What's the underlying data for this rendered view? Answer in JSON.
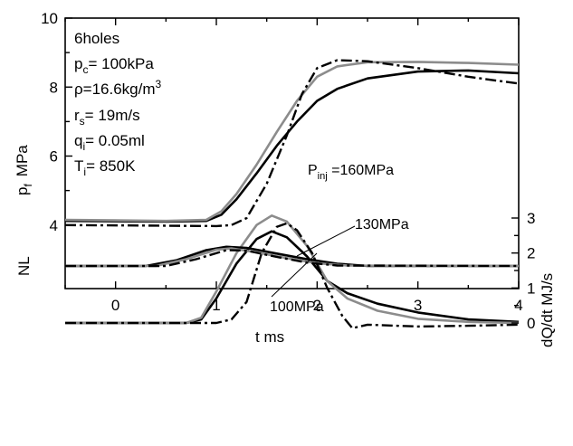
{
  "chart_data": {
    "type": "line",
    "xlabel": "t   ms",
    "xlim": [
      -0.5,
      4
    ],
    "x_ticks": [
      "0",
      "1",
      "2",
      "3",
      "4"
    ],
    "panels": {
      "pressure": {
        "ylabel": "p",
        "ylabel_sub": "f",
        "ylabel_unit": "MPa",
        "ylim": [
          3.6,
          10
        ],
        "y_ticks": [
          "4",
          "6",
          "8",
          "10"
        ],
        "series": [
          {
            "style": "black-solid",
            "points": [
              [
                -0.5,
                4.12
              ],
              [
                0.5,
                4.1
              ],
              [
                0.9,
                4.12
              ],
              [
                1.05,
                4.3
              ],
              [
                1.2,
                4.75
              ],
              [
                1.4,
                5.5
              ],
              [
                1.6,
                6.3
              ],
              [
                1.8,
                7.0
              ],
              [
                2.0,
                7.6
              ],
              [
                2.2,
                7.95
              ],
              [
                2.5,
                8.25
              ],
              [
                3.0,
                8.45
              ],
              [
                3.5,
                8.48
              ],
              [
                4.0,
                8.4
              ]
            ]
          },
          {
            "style": "gray-solid",
            "points": [
              [
                -0.5,
                4.15
              ],
              [
                0.5,
                4.12
              ],
              [
                0.9,
                4.15
              ],
              [
                1.05,
                4.4
              ],
              [
                1.2,
                4.9
              ],
              [
                1.4,
                5.75
              ],
              [
                1.6,
                6.7
              ],
              [
                1.8,
                7.6
              ],
              [
                2.0,
                8.3
              ],
              [
                2.2,
                8.6
              ],
              [
                2.5,
                8.72
              ],
              [
                3.0,
                8.73
              ],
              [
                3.5,
                8.7
              ],
              [
                4.0,
                8.65
              ]
            ]
          },
          {
            "style": "black-dashdot",
            "points": [
              [
                -0.5,
                4.0
              ],
              [
                0.5,
                3.98
              ],
              [
                1.0,
                3.97
              ],
              [
                1.15,
                4.0
              ],
              [
                1.3,
                4.2
              ],
              [
                1.5,
                5.2
              ],
              [
                1.7,
                6.6
              ],
              [
                1.85,
                7.8
              ],
              [
                2.0,
                8.55
              ],
              [
                2.2,
                8.78
              ],
              [
                2.5,
                8.75
              ],
              [
                3.0,
                8.55
              ],
              [
                3.5,
                8.3
              ],
              [
                4.0,
                8.1
              ]
            ]
          }
        ]
      },
      "heat_release": {
        "ylabel": "dQ/dt   MJ/s",
        "ylim": [
          -0.5,
          3.3
        ],
        "y_ticks": [
          "0",
          "1",
          "2",
          "3"
        ],
        "series": [
          {
            "name": "100MPa",
            "style": "black-solid",
            "points": [
              [
                -0.5,
                0
              ],
              [
                0.7,
                0
              ],
              [
                0.85,
                0.1
              ],
              [
                1.0,
                0.7
              ],
              [
                1.2,
                1.7
              ],
              [
                1.4,
                2.4
              ],
              [
                1.55,
                2.62
              ],
              [
                1.7,
                2.45
              ],
              [
                1.9,
                1.9
              ],
              [
                2.1,
                1.2
              ],
              [
                2.3,
                0.85
              ],
              [
                2.6,
                0.55
              ],
              [
                3.0,
                0.3
              ],
              [
                3.5,
                0.1
              ],
              [
                4.0,
                0.03
              ]
            ]
          },
          {
            "name": "130MPa",
            "style": "gray-solid",
            "points": [
              [
                -0.5,
                0
              ],
              [
                0.7,
                0
              ],
              [
                0.85,
                0.15
              ],
              [
                1.0,
                0.9
              ],
              [
                1.2,
                2.0
              ],
              [
                1.4,
                2.8
              ],
              [
                1.55,
                3.07
              ],
              [
                1.7,
                2.9
              ],
              [
                1.9,
                2.2
              ],
              [
                2.1,
                1.2
              ],
              [
                2.3,
                0.7
              ],
              [
                2.6,
                0.35
              ],
              [
                3.0,
                0.12
              ],
              [
                3.5,
                0.03
              ],
              [
                4.0,
                0.0
              ]
            ]
          },
          {
            "name": "P inj =160MPa",
            "style": "black-dashdot",
            "points": [
              [
                -0.5,
                0
              ],
              [
                1.0,
                0
              ],
              [
                1.15,
                0.1
              ],
              [
                1.3,
                0.6
              ],
              [
                1.45,
                2.0
              ],
              [
                1.6,
                2.75
              ],
              [
                1.7,
                2.85
              ],
              [
                1.8,
                2.65
              ],
              [
                1.95,
                2.0
              ],
              [
                2.1,
                1.0
              ],
              [
                2.25,
                0.2
              ],
              [
                2.35,
                -0.15
              ],
              [
                2.5,
                -0.05
              ],
              [
                3.0,
                -0.1
              ],
              [
                3.5,
                -0.08
              ],
              [
                4.0,
                -0.05
              ]
            ]
          }
        ]
      },
      "natural_luminosity": {
        "ylabel": "NL",
        "baseline": 0,
        "series": [
          {
            "style": "black-solid",
            "points": [
              [
                -0.5,
                0
              ],
              [
                0.3,
                0
              ],
              [
                0.6,
                0.25
              ],
              [
                0.9,
                0.7
              ],
              [
                1.1,
                0.85
              ],
              [
                1.3,
                0.8
              ],
              [
                1.6,
                0.55
              ],
              [
                1.9,
                0.3
              ],
              [
                2.2,
                0.1
              ],
              [
                2.5,
                0.0
              ],
              [
                4.0,
                0.0
              ]
            ]
          },
          {
            "style": "gray-solid",
            "points": [
              [
                -0.5,
                0
              ],
              [
                0.4,
                0
              ],
              [
                0.7,
                0.3
              ],
              [
                1.0,
                0.72
              ],
              [
                1.15,
                0.78
              ],
              [
                1.4,
                0.6
              ],
              [
                1.7,
                0.35
              ],
              [
                2.0,
                0.12
              ],
              [
                2.3,
                0.02
              ],
              [
                4.0,
                0.0
              ]
            ]
          },
          {
            "style": "black-dashdot",
            "points": [
              [
                -0.5,
                0
              ],
              [
                0.5,
                0
              ],
              [
                0.8,
                0.3
              ],
              [
                1.1,
                0.7
              ],
              [
                1.3,
                0.68
              ],
              [
                1.6,
                0.4
              ],
              [
                1.9,
                0.15
              ],
              [
                2.2,
                0.02
              ],
              [
                4.0,
                0.0
              ]
            ]
          }
        ]
      }
    },
    "legend_box": [
      {
        "main": "6holes"
      },
      {
        "main": "p",
        "sub": "c",
        "rest": "= 100kPa"
      },
      {
        "main": "ρ=16.6kg/m",
        "sup": "3"
      },
      {
        "main": "r",
        "sub": "s",
        "rest": "= 19m/s"
      },
      {
        "main": "q",
        "sub": "i",
        "rest": "= 0.05ml"
      },
      {
        "main": "T",
        "sub": "i",
        "rest": "= 850K"
      }
    ],
    "annotations": [
      {
        "main": "P",
        "sub": "inj",
        "rest": " =160MPa"
      },
      {
        "main": "130MPa"
      },
      {
        "main": "100MPa"
      }
    ],
    "colors": {
      "black": "#000000",
      "gray": "#8c8c8c"
    }
  }
}
